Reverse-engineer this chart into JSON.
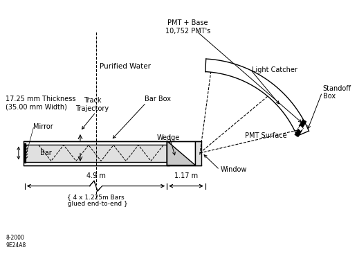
{
  "bg_color": "#ffffff",
  "line_color": "#000000",
  "gray_fill": "#c8c8c8",
  "light_gray": "#e0e0e0",
  "annotations": {
    "pmt_base": "PMT + Base\n10,752 PMT's",
    "purified_water": "Purified Water",
    "light_catcher": "Light Catcher",
    "standoff_box": "Standoff\nBox",
    "pmt_surface": "PMT Surface",
    "bar_box": "Bar Box",
    "wedge": "Wedge",
    "track": "Track\nTrajectory",
    "mirror": "Mirror",
    "bar": "Bar",
    "window": "Window",
    "thickness": "17.25 mm Thickness\n(35.00 mm Width)",
    "dim1": "4.9 m",
    "dim2": "1.17 m",
    "bars": "{ 4 x 1.225m Bars\n  glued end-to-end }",
    "date": "8-2000\n9E24A8"
  }
}
